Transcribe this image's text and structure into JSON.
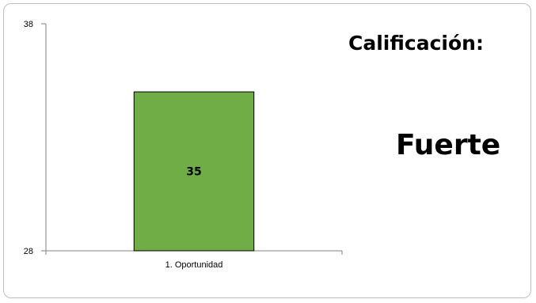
{
  "chart_data": {
    "type": "bar",
    "categories": [
      "1. Oportunidad"
    ],
    "values": [
      35
    ],
    "ylim": [
      28,
      38
    ],
    "yticks": [
      28,
      38
    ],
    "data_labels": [
      "35"
    ],
    "bar_color": "#70ad47",
    "bar_border": "#000000",
    "grid": false
  },
  "rating": {
    "title": "Calificación:",
    "value": "Fuerte"
  }
}
